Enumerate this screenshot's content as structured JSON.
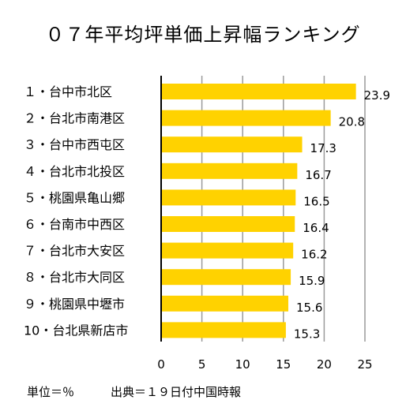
{
  "chart_data": {
    "type": "bar",
    "orientation": "horizontal",
    "title": "０７年平均坪単価上昇幅ランキング",
    "categories": [
      "１・台中市北区",
      "２・台北市南港区",
      "３・台中市西屯区",
      "４・台北市北投区",
      "５・桃園県亀山郷",
      "６・台南市中西区",
      "７・台北市大安区",
      "８・台北市大同区",
      "９・桃園県中壢市",
      "10・台北県新店市"
    ],
    "values": [
      23.9,
      20.8,
      17.3,
      16.7,
      16.5,
      16.4,
      16.2,
      15.9,
      15.6,
      15.3
    ],
    "value_labels": [
      "23.9",
      "20.8",
      "17.3",
      "16.7",
      "16.5",
      "16.4",
      "16.2",
      "15.9",
      "15.6",
      "15.3"
    ],
    "x_ticks": [
      "0",
      "5",
      "10",
      "15",
      "20",
      "25"
    ],
    "xlim": [
      0,
      25
    ],
    "grid": true,
    "legend": "none",
    "bar_color": "#FFD200"
  },
  "footer": {
    "unit": "単位＝％",
    "source": "出典＝１９日付中国時報"
  }
}
